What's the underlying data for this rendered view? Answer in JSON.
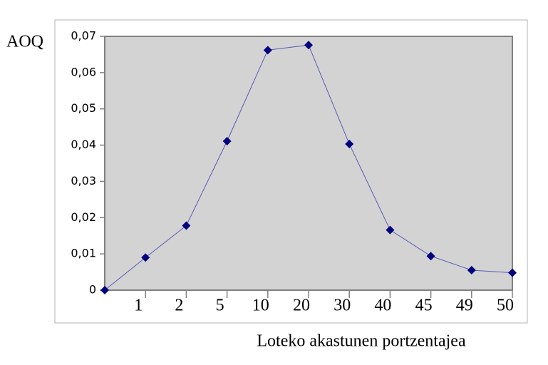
{
  "chart_data": {
    "type": "line",
    "y_label": "AOQ",
    "x_label": "Loteko akastunen portzentajea",
    "categories": [
      null,
      "1",
      "2",
      "5",
      "10",
      "20",
      "30",
      "40",
      "45",
      "49",
      "50"
    ],
    "values": [
      0,
      0.009,
      0.0178,
      0.0411,
      0.0662,
      0.0676,
      0.0403,
      0.0166,
      0.0094,
      0.0055,
      0.0048
    ],
    "color": "#000080",
    "line_color": "#5a5ab4",
    "ylim": [
      0,
      0.07
    ],
    "yticks": [
      0,
      {
        "value": 0.01,
        "label": "0,01"
      },
      {
        "value": 0.02,
        "label": "0,02"
      },
      {
        "value": 0.03,
        "label": "0,03"
      },
      {
        "value": 0.04,
        "label": "0,04"
      },
      {
        "value": 0.05,
        "label": "0,05"
      },
      {
        "value": 0.06,
        "label": "0,06"
      },
      {
        "value": 0.07,
        "label": "0,07"
      }
    ],
    "grid": false
  }
}
